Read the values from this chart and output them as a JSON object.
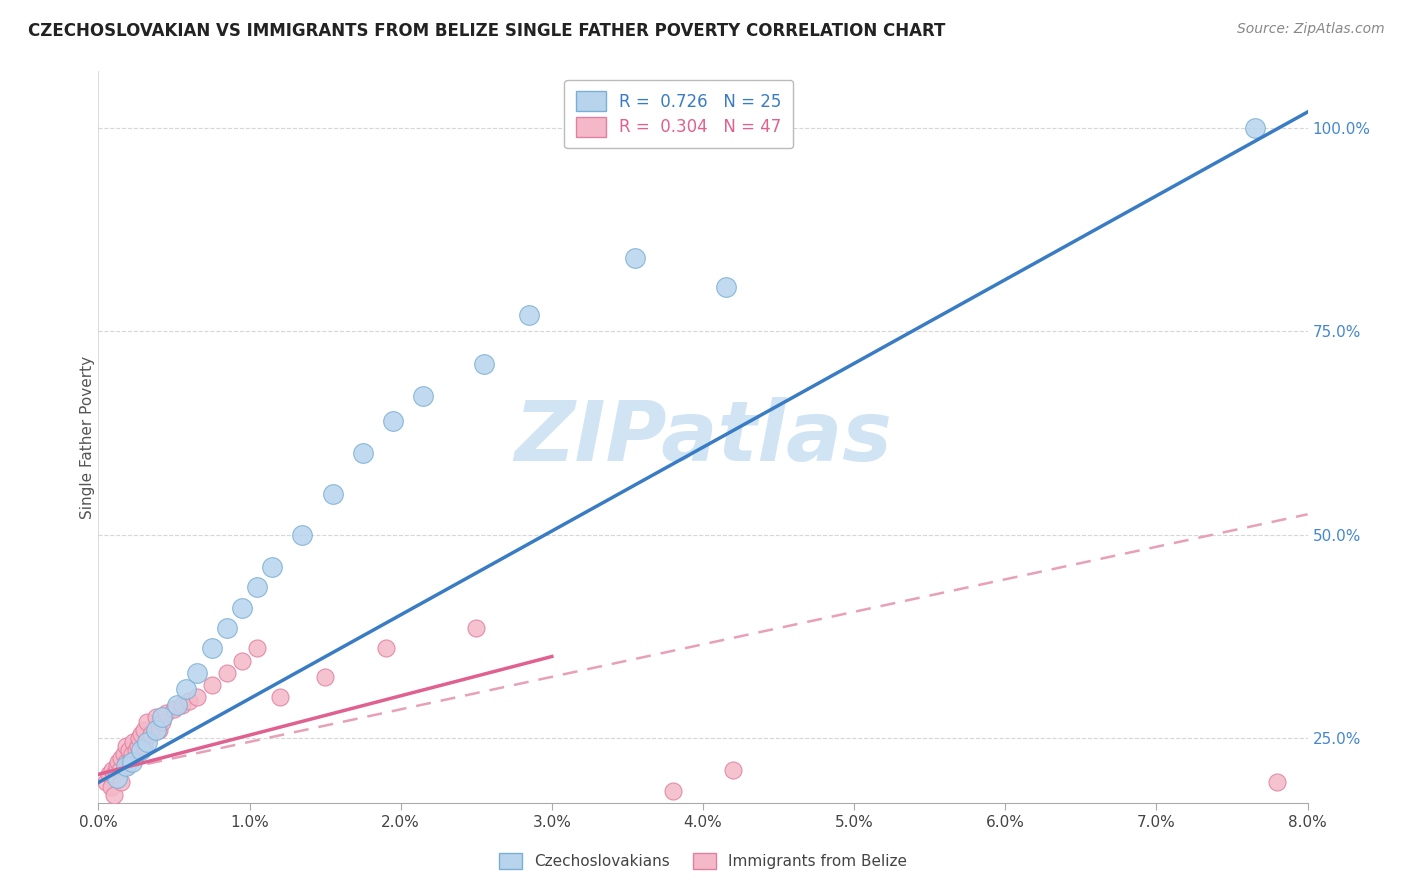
{
  "title": "CZECHOSLOVAKIAN VS IMMIGRANTS FROM BELIZE SINGLE FATHER POVERTY CORRELATION CHART",
  "source": "Source: ZipAtlas.com",
  "ylabel": "Single Father Poverty",
  "xlim": [
    0.0,
    8.0
  ],
  "ylim": [
    17.0,
    107.0
  ],
  "xtick_vals": [
    0,
    1,
    2,
    3,
    4,
    5,
    6,
    7,
    8
  ],
  "ytick_vals": [
    25.0,
    50.0,
    75.0,
    100.0
  ],
  "legend_blue_label": "R =  0.726   N = 25",
  "legend_pink_label": "R =  0.304   N = 47",
  "blue_fill": "#b8d4ed",
  "blue_edge": "#7aafd4",
  "pink_fill": "#f4b8c8",
  "pink_edge": "#e080a0",
  "trend_blue_color": "#3a7cc4",
  "trend_pink_solid_color": "#e06090",
  "trend_pink_dash_color": "#e8a0b8",
  "watermark_color": "#d0e4f4",
  "blue_points_x": [
    0.12,
    0.18,
    0.22,
    0.28,
    0.32,
    0.38,
    0.42,
    0.52,
    0.58,
    0.65,
    0.75,
    0.85,
    0.95,
    1.05,
    1.15,
    1.35,
    1.55,
    1.75,
    1.95,
    2.15,
    2.55,
    2.85,
    3.55,
    4.15,
    7.65
  ],
  "blue_points_y": [
    20.0,
    21.5,
    22.0,
    23.5,
    24.5,
    26.0,
    27.5,
    29.0,
    31.0,
    33.0,
    36.0,
    38.5,
    41.0,
    43.5,
    46.0,
    50.0,
    55.0,
    60.0,
    64.0,
    67.0,
    71.0,
    77.0,
    84.0,
    80.5,
    100.0
  ],
  "pink_points_x": [
    0.05,
    0.07,
    0.08,
    0.09,
    0.1,
    0.1,
    0.12,
    0.13,
    0.14,
    0.15,
    0.15,
    0.17,
    0.18,
    0.18,
    0.19,
    0.2,
    0.2,
    0.22,
    0.23,
    0.24,
    0.25,
    0.26,
    0.27,
    0.28,
    0.3,
    0.3,
    0.32,
    0.35,
    0.38,
    0.4,
    0.42,
    0.45,
    0.5,
    0.55,
    0.6,
    0.65,
    0.75,
    0.85,
    0.95,
    1.05,
    1.2,
    1.5,
    1.9,
    2.5,
    3.8,
    4.2,
    7.8
  ],
  "pink_points_y": [
    19.5,
    20.5,
    19.0,
    21.0,
    20.5,
    18.0,
    21.5,
    22.0,
    21.0,
    22.5,
    19.5,
    23.0,
    22.0,
    24.0,
    21.5,
    22.0,
    23.5,
    23.0,
    24.5,
    22.5,
    23.5,
    24.0,
    25.0,
    25.5,
    24.0,
    26.0,
    27.0,
    25.5,
    27.5,
    26.0,
    27.0,
    28.0,
    28.5,
    29.0,
    29.5,
    30.0,
    31.5,
    33.0,
    34.5,
    36.0,
    30.0,
    32.5,
    36.0,
    38.5,
    18.5,
    21.0,
    19.5
  ],
  "blue_trend_x0": 0.0,
  "blue_trend_x1": 8.0,
  "blue_trend_y0": 19.5,
  "blue_trend_y1": 102.0,
  "pink_solid_x0": 0.0,
  "pink_solid_x1": 3.0,
  "pink_solid_y0": 20.5,
  "pink_solid_y1": 35.0,
  "pink_dash_x0": 0.0,
  "pink_dash_x1": 8.0,
  "pink_dash_y0": 20.5,
  "pink_dash_y1": 52.5
}
